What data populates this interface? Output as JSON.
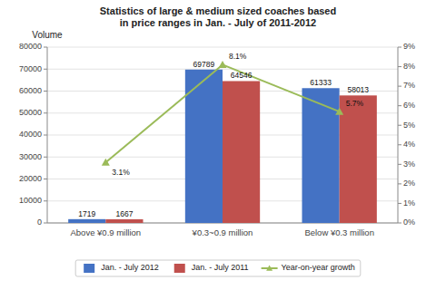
{
  "chart_data": {
    "type": "bar",
    "title": "Statistics of large & medium sized coaches based in price ranges in Jan. - July of 2011-2012",
    "ylabel": "Volume",
    "categories": [
      "Above ¥0.9 million",
      "¥0.3~0.9 million",
      "Below ¥0.3 million"
    ],
    "series": [
      {
        "name": "Jan. - July 2012",
        "type": "bar",
        "color": "#4472C4",
        "values": [
          1719,
          69789,
          61333
        ]
      },
      {
        "name": "Jan. - July 2011",
        "type": "bar",
        "color": "#C0504D",
        "values": [
          1667,
          64546,
          58013
        ]
      },
      {
        "name": "Year-on-year growth",
        "type": "line",
        "axis": "y2",
        "color": "#9BBB59",
        "marker": "triangle",
        "values": [
          3.1,
          8.1,
          5.7
        ],
        "value_labels": [
          "3.1%",
          "8.1%",
          "5.7%"
        ]
      }
    ],
    "ylim": [
      0,
      80000
    ],
    "yticks": [
      0,
      10000,
      20000,
      30000,
      40000,
      50000,
      60000,
      70000,
      80000
    ],
    "y2lim": [
      0,
      9
    ],
    "y2ticks": [
      {
        "value": 0,
        "label": "0%"
      },
      {
        "value": 1,
        "label": "1%"
      },
      {
        "value": 2,
        "label": "2%"
      },
      {
        "value": 3,
        "label": "3%"
      },
      {
        "value": 4,
        "label": "4%"
      },
      {
        "value": 5,
        "label": "5%"
      },
      {
        "value": 6,
        "label": "6%"
      },
      {
        "value": 7,
        "label": "7%"
      },
      {
        "value": 8,
        "label": "8%"
      },
      {
        "value": 9,
        "label": "9%"
      }
    ],
    "grid": true,
    "data_labels": true,
    "legend": "bottom"
  }
}
